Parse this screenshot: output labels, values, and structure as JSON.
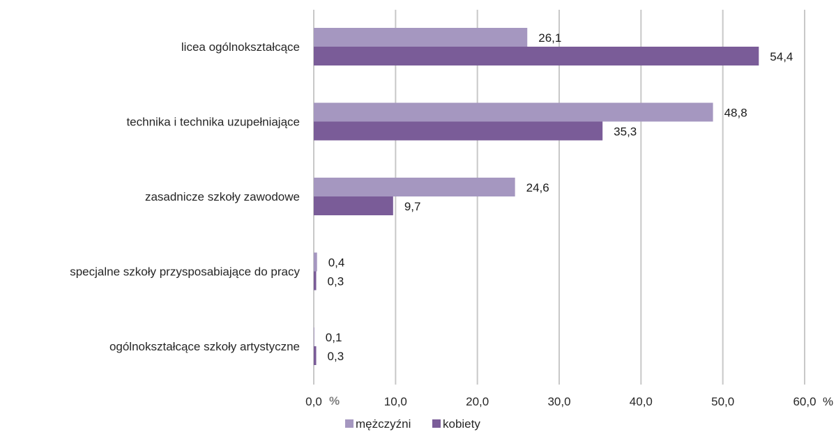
{
  "chart_data": {
    "type": "bar",
    "orientation": "horizontal",
    "categories": [
      "licea ogólnokształcące",
      "technika i technika uzupełniające",
      "zasadnicze szkoły zawodowe",
      "specjalne szkoły przysposabiające do pracy",
      "ogólnokształcące szkoły artystyczne"
    ],
    "series": [
      {
        "name": "mężczyźni",
        "color": "#a597c0",
        "values": [
          26.1,
          48.8,
          24.6,
          0.4,
          0.1
        ],
        "labels": [
          "26,1",
          "48,8",
          "24,6",
          "0,4",
          "0,1"
        ]
      },
      {
        "name": "kobiety",
        "color": "#7a5c98",
        "values": [
          54.4,
          35.3,
          9.7,
          0.3,
          0.3
        ],
        "labels": [
          "54,4",
          "35,3",
          "9,7",
          "0,3",
          "0,3"
        ]
      }
    ],
    "xlim": [
      0,
      60
    ],
    "ticks": [
      0,
      10,
      20,
      30,
      40,
      50,
      60
    ],
    "tick_labels": [
      "0,0",
      "10,0",
      "20,0",
      "30,0",
      "40,0",
      "50,0",
      "60,0"
    ],
    "x_unit_near_zero": "%",
    "x_unit_end": "%",
    "grid": "vertical",
    "grid_color": "#c8c8c8",
    "legend_position": "bottom"
  }
}
